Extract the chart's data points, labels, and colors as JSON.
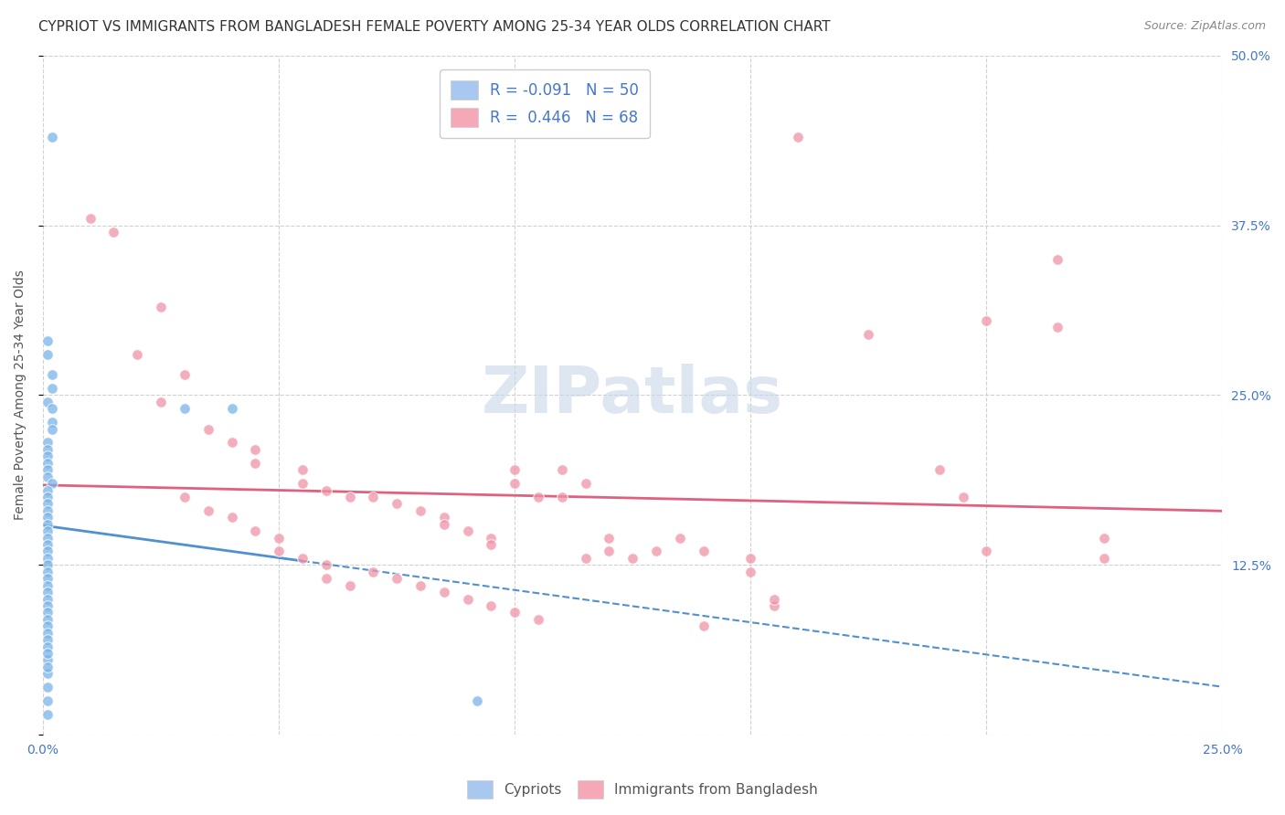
{
  "title": "CYPRIOT VS IMMIGRANTS FROM BANGLADESH FEMALE POVERTY AMONG 25-34 YEAR OLDS CORRELATION CHART",
  "source": "Source: ZipAtlas.com",
  "ylabel": "Female Poverty Among 25-34 Year Olds",
  "xlim": [
    0.0,
    0.25
  ],
  "ylim": [
    0.0,
    0.5
  ],
  "xticks": [
    0.0,
    0.05,
    0.1,
    0.15,
    0.2,
    0.25
  ],
  "xticklabels": [
    "0.0%",
    "",
    "",
    "",
    "",
    "25.0%"
  ],
  "yticks_right": [
    0.0,
    0.125,
    0.25,
    0.375,
    0.5
  ],
  "yticklabels_right": [
    "",
    "12.5%",
    "25.0%",
    "37.5%",
    "50.0%"
  ],
  "cypriot_color": "#7ab3e8",
  "bangladesh_color": "#f093a8",
  "cypriot_legend_color": "#a8c8f0",
  "bangladesh_legend_color": "#f4a8b8",
  "cypriot_R": -0.091,
  "cypriot_N": 50,
  "bangladesh_R": 0.446,
  "bangladesh_N": 68,
  "background_color": "#ffffff",
  "grid_color": "#d0d0d0",
  "watermark": "ZIPatlas",
  "watermark_color": "#c8d8e8",
  "title_fontsize": 11,
  "axis_label_fontsize": 10,
  "tick_fontsize": 10,
  "source_fontsize": 9,
  "cypriot_line_color": "#5090d0",
  "bangladesh_line_color": "#e06080",
  "cypriot_points": [
    [
      0.002,
      0.44
    ],
    [
      0.001,
      0.29
    ],
    [
      0.001,
      0.28
    ],
    [
      0.002,
      0.265
    ],
    [
      0.002,
      0.255
    ],
    [
      0.001,
      0.245
    ],
    [
      0.002,
      0.24
    ],
    [
      0.002,
      0.23
    ],
    [
      0.002,
      0.225
    ],
    [
      0.001,
      0.215
    ],
    [
      0.001,
      0.21
    ],
    [
      0.001,
      0.205
    ],
    [
      0.001,
      0.2
    ],
    [
      0.001,
      0.195
    ],
    [
      0.001,
      0.19
    ],
    [
      0.002,
      0.185
    ],
    [
      0.001,
      0.18
    ],
    [
      0.001,
      0.175
    ],
    [
      0.001,
      0.17
    ],
    [
      0.001,
      0.165
    ],
    [
      0.001,
      0.16
    ],
    [
      0.001,
      0.155
    ],
    [
      0.001,
      0.15
    ],
    [
      0.001,
      0.145
    ],
    [
      0.001,
      0.14
    ],
    [
      0.001,
      0.135
    ],
    [
      0.001,
      0.13
    ],
    [
      0.001,
      0.125
    ],
    [
      0.001,
      0.12
    ],
    [
      0.001,
      0.115
    ],
    [
      0.001,
      0.11
    ],
    [
      0.001,
      0.105
    ],
    [
      0.001,
      0.1
    ],
    [
      0.001,
      0.095
    ],
    [
      0.001,
      0.09
    ],
    [
      0.001,
      0.085
    ],
    [
      0.001,
      0.08
    ],
    [
      0.001,
      0.075
    ],
    [
      0.001,
      0.07
    ],
    [
      0.001,
      0.065
    ],
    [
      0.001,
      0.055
    ],
    [
      0.001,
      0.045
    ],
    [
      0.001,
      0.035
    ],
    [
      0.001,
      0.025
    ],
    [
      0.001,
      0.015
    ],
    [
      0.03,
      0.24
    ],
    [
      0.04,
      0.24
    ],
    [
      0.001,
      0.06
    ],
    [
      0.001,
      0.05
    ],
    [
      0.092,
      0.025
    ]
  ],
  "bangladesh_points": [
    [
      0.01,
      0.38
    ],
    [
      0.015,
      0.37
    ],
    [
      0.025,
      0.315
    ],
    [
      0.02,
      0.28
    ],
    [
      0.03,
      0.265
    ],
    [
      0.025,
      0.245
    ],
    [
      0.035,
      0.225
    ],
    [
      0.04,
      0.215
    ],
    [
      0.045,
      0.21
    ],
    [
      0.045,
      0.2
    ],
    [
      0.055,
      0.195
    ],
    [
      0.055,
      0.185
    ],
    [
      0.06,
      0.18
    ],
    [
      0.065,
      0.175
    ],
    [
      0.07,
      0.175
    ],
    [
      0.075,
      0.17
    ],
    [
      0.08,
      0.165
    ],
    [
      0.085,
      0.16
    ],
    [
      0.085,
      0.155
    ],
    [
      0.09,
      0.15
    ],
    [
      0.095,
      0.145
    ],
    [
      0.095,
      0.14
    ],
    [
      0.1,
      0.195
    ],
    [
      0.1,
      0.185
    ],
    [
      0.105,
      0.175
    ],
    [
      0.11,
      0.195
    ],
    [
      0.11,
      0.175
    ],
    [
      0.115,
      0.185
    ],
    [
      0.115,
      0.13
    ],
    [
      0.12,
      0.145
    ],
    [
      0.12,
      0.135
    ],
    [
      0.125,
      0.13
    ],
    [
      0.03,
      0.175
    ],
    [
      0.035,
      0.165
    ],
    [
      0.04,
      0.16
    ],
    [
      0.045,
      0.15
    ],
    [
      0.05,
      0.145
    ],
    [
      0.05,
      0.135
    ],
    [
      0.055,
      0.13
    ],
    [
      0.06,
      0.125
    ],
    [
      0.06,
      0.115
    ],
    [
      0.065,
      0.11
    ],
    [
      0.07,
      0.12
    ],
    [
      0.075,
      0.115
    ],
    [
      0.08,
      0.11
    ],
    [
      0.085,
      0.105
    ],
    [
      0.09,
      0.1
    ],
    [
      0.095,
      0.095
    ],
    [
      0.1,
      0.09
    ],
    [
      0.105,
      0.085
    ],
    [
      0.16,
      0.44
    ],
    [
      0.2,
      0.305
    ],
    [
      0.215,
      0.3
    ],
    [
      0.175,
      0.295
    ],
    [
      0.195,
      0.175
    ],
    [
      0.13,
      0.135
    ],
    [
      0.135,
      0.145
    ],
    [
      0.14,
      0.135
    ],
    [
      0.15,
      0.13
    ],
    [
      0.14,
      0.08
    ],
    [
      0.15,
      0.12
    ],
    [
      0.155,
      0.095
    ],
    [
      0.155,
      0.1
    ],
    [
      0.215,
      0.35
    ],
    [
      0.19,
      0.195
    ],
    [
      0.2,
      0.135
    ],
    [
      0.225,
      0.145
    ],
    [
      0.225,
      0.13
    ]
  ]
}
